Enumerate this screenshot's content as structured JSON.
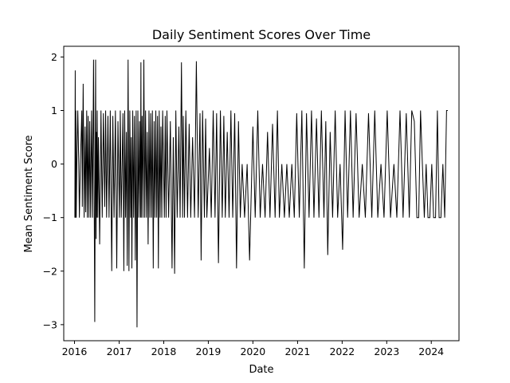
{
  "chart_data": {
    "type": "line",
    "title": "Daily Sentiment Scores Over Time",
    "xlabel": "Date",
    "ylabel": "Mean Sentiment Score",
    "x_ticks": [
      "2016",
      "2017",
      "2018",
      "2019",
      "2020",
      "2021",
      "2022",
      "2023",
      "2024"
    ],
    "y_ticks": [
      "−3",
      "−2",
      "−1",
      "0",
      "1",
      "2"
    ],
    "y_tick_values": [
      -3,
      -2,
      -1,
      0,
      1,
      2
    ],
    "xlim": [
      "2015-10-05",
      "2024-08-15"
    ],
    "ylim": [
      -3.3,
      2.2
    ],
    "grid": false,
    "line_color": "#000000",
    "series": [
      {
        "x": [
          "2016-01-04",
          "2016-01-07",
          "2016-01-10",
          "2016-01-12",
          "2016-01-15",
          "2016-01-20",
          "2016-01-28",
          "2016-02-05",
          "2016-02-10",
          "2016-02-18",
          "2016-03-01",
          "2016-03-05",
          "2016-03-12",
          "2016-03-20",
          "2016-03-28",
          "2016-04-02",
          "2016-04-10",
          "2016-04-15",
          "2016-04-22",
          "2016-04-28",
          "2016-05-05",
          "2016-05-12",
          "2016-05-20",
          "2016-05-28",
          "2016-06-05",
          "2016-06-15",
          "2016-06-22",
          "2016-06-26",
          "2016-06-28",
          "2016-07-01",
          "2016-07-05",
          "2016-07-10",
          "2016-07-15",
          "2016-07-25",
          "2016-08-05",
          "2016-08-15",
          "2016-08-25",
          "2016-09-05",
          "2016-09-12",
          "2016-09-20",
          "2016-10-01",
          "2016-10-10",
          "2016-10-20",
          "2016-11-01",
          "2016-11-10",
          "2016-11-20",
          "2016-12-01",
          "2016-12-12",
          "2016-12-22",
          "2017-01-03",
          "2017-01-10",
          "2017-01-18",
          "2017-02-01",
          "2017-02-08",
          "2017-02-15",
          "2017-02-22",
          "2017-03-01",
          "2017-03-08",
          "2017-03-15",
          "2017-03-22",
          "2017-03-29",
          "2017-04-05",
          "2017-04-10",
          "2017-04-15",
          "2017-04-22",
          "2017-04-29",
          "2017-05-06",
          "2017-05-13",
          "2017-05-20",
          "2017-05-27",
          "2017-06-03",
          "2017-06-10",
          "2017-06-17",
          "2017-06-24",
          "2017-06-28",
          "2017-07-01",
          "2017-07-08",
          "2017-07-15",
          "2017-07-22",
          "2017-07-29",
          "2017-08-05",
          "2017-08-12",
          "2017-08-19",
          "2017-08-26",
          "2017-09-02",
          "2017-09-09",
          "2017-09-16",
          "2017-09-23",
          "2017-09-30",
          "2017-10-07",
          "2017-10-14",
          "2017-10-21",
          "2017-10-28",
          "2017-11-04",
          "2017-11-11",
          "2017-11-18",
          "2017-11-25",
          "2017-12-02",
          "2017-12-09",
          "2017-12-16",
          "2017-12-23",
          "2018-01-06",
          "2018-01-13",
          "2018-01-20",
          "2018-01-27",
          "2018-02-10",
          "2018-02-24",
          "2018-03-10",
          "2018-03-20",
          "2018-03-31",
          "2018-04-10",
          "2018-04-21",
          "2018-05-05",
          "2018-05-15",
          "2018-05-26",
          "2018-06-05",
          "2018-06-10",
          "2018-06-20",
          "2018-07-01",
          "2018-07-15",
          "2018-07-28",
          "2018-08-10",
          "2018-08-25",
          "2018-09-10",
          "2018-09-25",
          "2018-10-10",
          "2018-10-25",
          "2018-11-03",
          "2018-11-15",
          "2018-11-30",
          "2018-12-10",
          "2018-12-20",
          "2019-01-10",
          "2019-01-25",
          "2019-02-10",
          "2019-02-25",
          "2019-03-10",
          "2019-03-25",
          "2019-04-10",
          "2019-04-25",
          "2019-05-08",
          "2019-05-20",
          "2019-06-05",
          "2019-06-20",
          "2019-07-05",
          "2019-07-20",
          "2019-08-05",
          "2019-08-20",
          "2019-09-05",
          "2019-09-20",
          "2019-10-05",
          "2019-10-25",
          "2019-11-15",
          "2019-12-05",
          "2020-01-01",
          "2020-01-20",
          "2020-02-10",
          "2020-03-01",
          "2020-03-20",
          "2020-04-10",
          "2020-04-30",
          "2020-05-20",
          "2020-06-10",
          "2020-07-01",
          "2020-07-20",
          "2020-08-05",
          "2020-08-25",
          "2020-09-15",
          "2020-10-05",
          "2020-10-25",
          "2020-11-15",
          "2020-12-05",
          "2020-12-25",
          "2021-01-15",
          "2021-02-05",
          "2021-02-25",
          "2021-03-15",
          "2021-04-05",
          "2021-04-25",
          "2021-05-15",
          "2021-06-05",
          "2021-06-25",
          "2021-07-15",
          "2021-08-05",
          "2021-08-20",
          "2021-09-05",
          "2021-09-25",
          "2021-10-15",
          "2021-11-05",
          "2021-11-25",
          "2021-12-15",
          "2022-01-05",
          "2022-01-25",
          "2022-02-15",
          "2022-03-10",
          "2022-04-01",
          "2022-04-25",
          "2022-05-20",
          "2022-06-15",
          "2022-07-10",
          "2022-08-05",
          "2022-09-01",
          "2022-09-25",
          "2022-10-20",
          "2022-11-15",
          "2022-12-10",
          "2023-01-05",
          "2023-02-01",
          "2023-03-01",
          "2023-03-25",
          "2023-04-20",
          "2023-05-15",
          "2023-06-10",
          "2023-07-05",
          "2023-07-25",
          "2023-08-15",
          "2023-09-05",
          "2023-09-20",
          "2023-10-05",
          "2023-10-20",
          "2023-11-05",
          "2023-11-20",
          "2023-12-05",
          "2023-12-20",
          "2024-01-05",
          "2024-01-20",
          "2024-02-05",
          "2024-02-20",
          "2024-03-05",
          "2024-03-20",
          "2024-04-05",
          "2024-04-20",
          "2024-05-05",
          "2024-05-15"
        ],
        "values": [
          -1,
          1.75,
          -1,
          1,
          -1,
          0,
          1,
          0,
          -1,
          0,
          1,
          -0.8,
          1.5,
          -1,
          0.7,
          -0.9,
          1,
          -1,
          0.9,
          -1,
          0.8,
          -1,
          1,
          -1,
          1.95,
          -2.95,
          1.95,
          -1.4,
          0.6,
          -1,
          1,
          -1,
          0.5,
          -1.5,
          1,
          -1,
          0.95,
          -0.8,
          1,
          -1,
          0.9,
          -1,
          1,
          -2,
          0.9,
          -1,
          1,
          -1.95,
          0.8,
          -1,
          1,
          -1,
          0.95,
          -2,
          1,
          -1,
          0.6,
          -1.9,
          1.95,
          -2,
          1,
          -1,
          0.5,
          -1.95,
          1,
          -1,
          0.9,
          -1.8,
          1,
          -3.05,
          1,
          -1,
          0.8,
          -1,
          1.9,
          -1,
          0.9,
          -1,
          1.95,
          -1,
          1,
          -1,
          0.6,
          -1.5,
          1,
          -1,
          0.95,
          -1,
          1,
          -1.95,
          0.8,
          -1,
          1,
          -1,
          0.9,
          -1.95,
          1,
          -1,
          0.7,
          -1,
          1,
          -1,
          0.9,
          -1,
          1,
          -1,
          0.8,
          -1.95,
          0.5,
          -2.05,
          1,
          -1,
          0.7,
          -1,
          1.9,
          -1,
          0.9,
          -1,
          1,
          -1,
          0.75,
          -1,
          0.5,
          -1,
          1.92,
          -1,
          0.95,
          -1.8,
          1,
          -1,
          0.85,
          -1,
          0.3,
          -1,
          1,
          -1,
          0.95,
          -1.85,
          1,
          -1,
          0.9,
          -1,
          0.6,
          -1,
          1,
          -1,
          0.95,
          -1.95,
          0.8,
          -1,
          0,
          -1,
          0,
          -1.8,
          0.7,
          -1,
          1,
          -1,
          0,
          -1,
          0.6,
          -1,
          0.75,
          -1,
          1,
          -1,
          0,
          -1,
          0,
          -1,
          0,
          -1,
          0.95,
          -1,
          1,
          -1.95,
          0.95,
          -1,
          1,
          -1,
          0.85,
          -1,
          1,
          -1,
          0.8,
          -1.7,
          0.6,
          -1,
          1,
          -1,
          0,
          -1.6,
          1,
          -1,
          1,
          -1,
          0.95,
          -1,
          0,
          -1,
          0.95,
          -1,
          1,
          -1,
          0,
          -1,
          1,
          -1,
          0,
          -1,
          1,
          -1,
          0.95,
          -1,
          1,
          0.8,
          -1,
          -1,
          1,
          0,
          -1,
          0,
          -1,
          -1,
          0,
          -1,
          -1,
          1,
          -1,
          -1,
          0,
          -1,
          1,
          1
        ]
      }
    ]
  }
}
